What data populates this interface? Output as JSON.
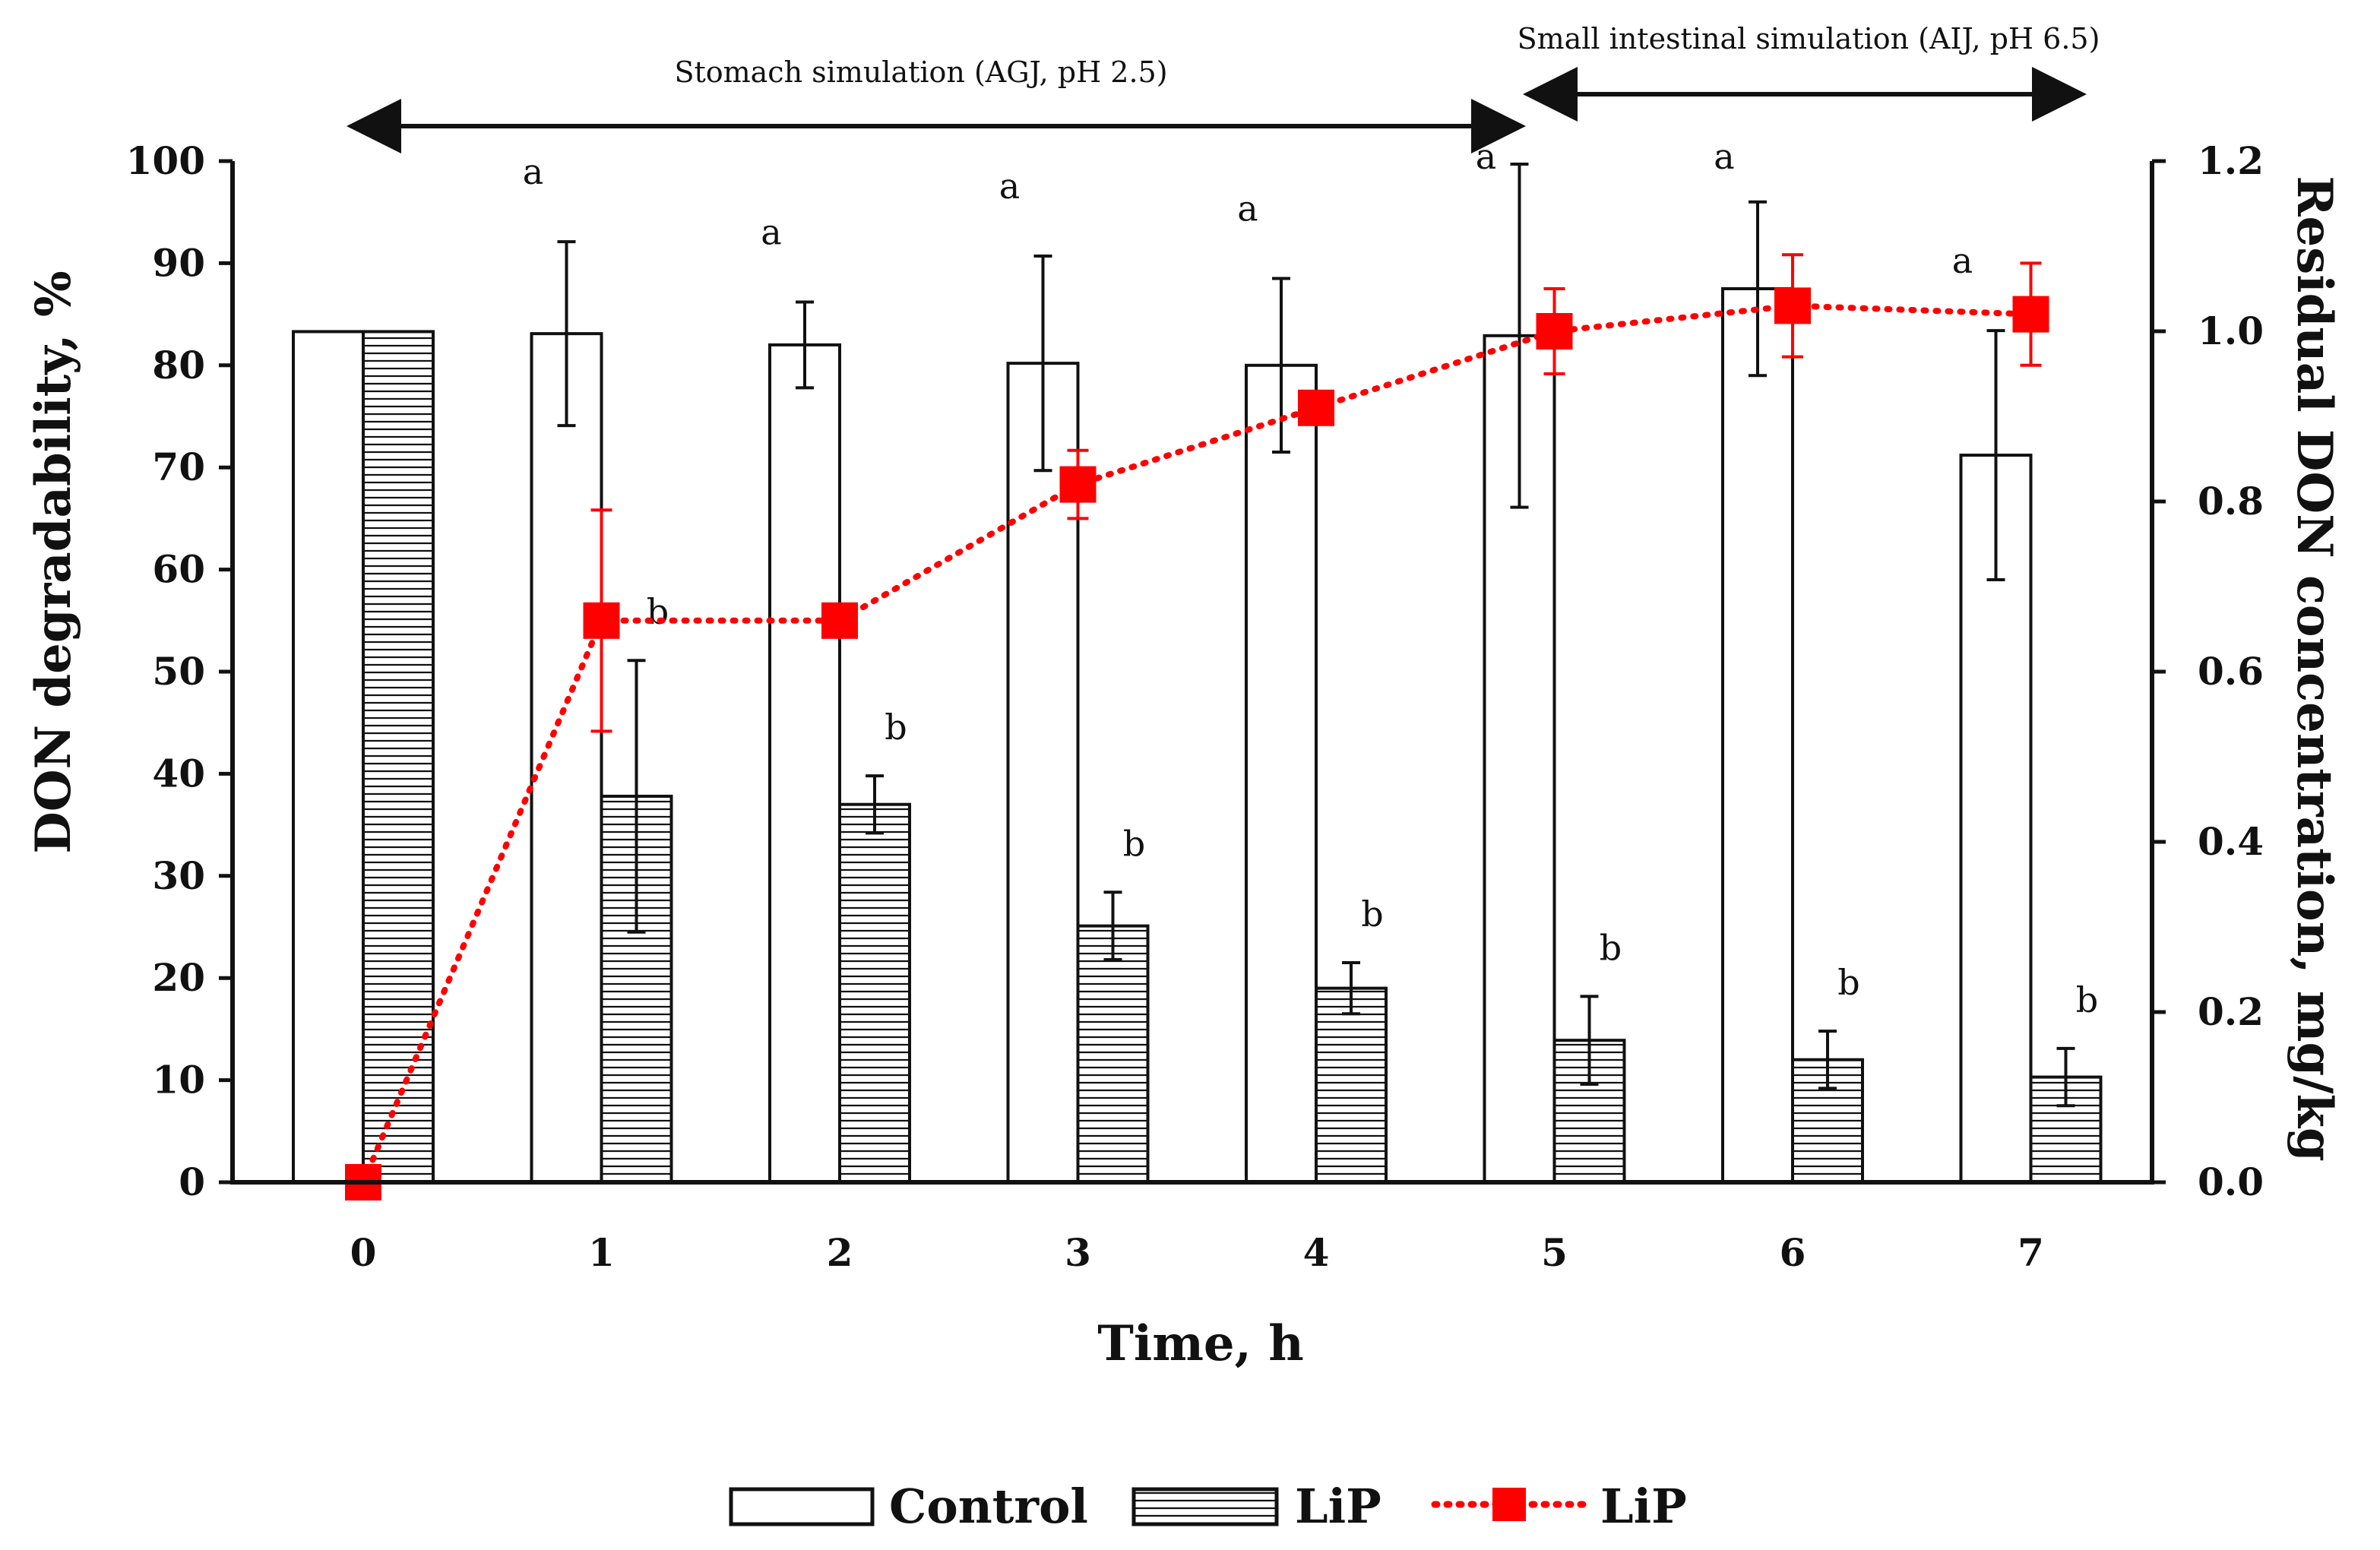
{
  "chart_data": {
    "type": "bar",
    "x": [
      0,
      1,
      2,
      3,
      4,
      5,
      6,
      7
    ],
    "xlabel": "Time, h",
    "ylabel_left": "DON degradability, %",
    "ylabel_right": "Residual DON concentration, mg/kg",
    "ylim_left": [
      0,
      100
    ],
    "ylim_right": [
      0,
      1.2
    ],
    "yticks_left": [
      "0",
      "10",
      "20",
      "30",
      "40",
      "50",
      "60",
      "70",
      "80",
      "90",
      "100"
    ],
    "yticks_right": [
      "0.0",
      "0.2",
      "0.4",
      "0.6",
      "0.8",
      "1.0",
      "1.2"
    ],
    "xticks": [
      "0",
      "1",
      "2",
      "3",
      "4",
      "5",
      "6",
      "7"
    ],
    "series": [
      {
        "name": "Control",
        "kind": "bar",
        "pattern": "open",
        "axis": "left",
        "values": [
          83.3,
          83.1,
          82.0,
          80.2,
          80.0,
          82.9,
          87.5,
          71.2
        ],
        "errors": [
          0,
          9.0,
          4.2,
          10.5,
          8.5,
          16.8,
          8.5,
          12.2
        ],
        "labels": [
          "",
          "a",
          "a",
          "a",
          "a",
          "a",
          "a",
          "a"
        ]
      },
      {
        "name": "LiP",
        "kind": "bar",
        "pattern": "horizontal-hatch",
        "axis": "left",
        "values": [
          83.3,
          37.8,
          37.0,
          25.1,
          19.0,
          13.9,
          12.0,
          10.3
        ],
        "errors": [
          0,
          13.3,
          2.8,
          3.3,
          2.5,
          4.3,
          2.8,
          2.8
        ],
        "labels": [
          "",
          "b",
          "b",
          "b",
          "b",
          "b",
          "b",
          "b"
        ]
      },
      {
        "name": "LiP",
        "kind": "line",
        "axis": "right",
        "color": "#ff0000",
        "values": [
          0.0,
          0.66,
          0.66,
          0.82,
          0.91,
          1.0,
          1.03,
          1.02
        ],
        "errors": [
          0,
          0.13,
          0,
          0.04,
          0,
          0.05,
          0.06,
          0.06
        ]
      }
    ],
    "annotations": [
      {
        "text": "Stomach simulation (AGJ, pH 2.5)",
        "from": 0,
        "to": 5
      },
      {
        "text": "Small intestinal simulation (AIJ, pH 6.5)",
        "from": 5,
        "to": 7.2
      }
    ],
    "legend": {
      "placement": "bottom-center",
      "entries": [
        "Control",
        "LiP",
        "LiP"
      ]
    }
  }
}
